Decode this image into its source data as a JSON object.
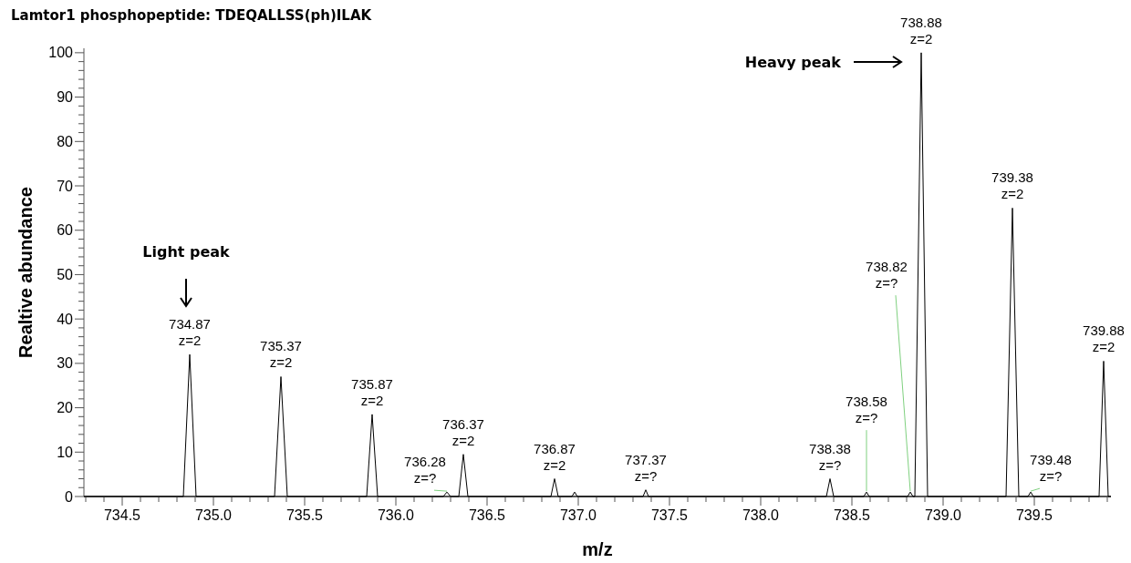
{
  "chart_data": {
    "type": "line",
    "title": "Lamtor1 phosphopeptide:  TDEQALLSS(ph)ILAK",
    "xlabel": "m/z",
    "ylabel": "Realtive abundance",
    "xlim": [
      734.29,
      739.92
    ],
    "xticks": [
      {
        "value": 734.3,
        "label": null
      },
      {
        "value": 734.4,
        "label": null
      },
      {
        "value": 734.5,
        "label": "734.5"
      },
      {
        "value": 734.6,
        "label": null
      },
      {
        "value": 734.7,
        "label": null
      },
      {
        "value": 734.8,
        "label": null
      },
      {
        "value": 734.9,
        "label": null
      },
      {
        "value": 735.0,
        "label": "735.0"
      },
      {
        "value": 735.1,
        "label": null
      },
      {
        "value": 735.2,
        "label": null
      },
      {
        "value": 735.3,
        "label": null
      },
      {
        "value": 735.4,
        "label": null
      },
      {
        "value": 735.5,
        "label": "735.5"
      },
      {
        "value": 735.6,
        "label": null
      },
      {
        "value": 735.7,
        "label": null
      },
      {
        "value": 735.8,
        "label": null
      },
      {
        "value": 735.9,
        "label": null
      },
      {
        "value": 736.0,
        "label": "736.0"
      },
      {
        "value": 736.1,
        "label": null
      },
      {
        "value": 736.2,
        "label": null
      },
      {
        "value": 736.3,
        "label": null
      },
      {
        "value": 736.4,
        "label": null
      },
      {
        "value": 736.5,
        "label": "736.5"
      },
      {
        "value": 736.6,
        "label": null
      },
      {
        "value": 736.7,
        "label": null
      },
      {
        "value": 736.8,
        "label": null
      },
      {
        "value": 736.9,
        "label": null
      },
      {
        "value": 737.0,
        "label": "737.0"
      },
      {
        "value": 737.1,
        "label": null
      },
      {
        "value": 737.2,
        "label": null
      },
      {
        "value": 737.3,
        "label": null
      },
      {
        "value": 737.4,
        "label": null
      },
      {
        "value": 737.5,
        "label": "737.5"
      },
      {
        "value": 737.6,
        "label": null
      },
      {
        "value": 737.7,
        "label": null
      },
      {
        "value": 737.8,
        "label": null
      },
      {
        "value": 737.9,
        "label": null
      },
      {
        "value": 738.0,
        "label": "738.0"
      },
      {
        "value": 738.1,
        "label": null
      },
      {
        "value": 738.2,
        "label": null
      },
      {
        "value": 738.3,
        "label": null
      },
      {
        "value": 738.4,
        "label": null
      },
      {
        "value": 738.5,
        "label": "738.5"
      },
      {
        "value": 738.6,
        "label": null
      },
      {
        "value": 738.7,
        "label": null
      },
      {
        "value": 738.8,
        "label": null
      },
      {
        "value": 738.9,
        "label": null
      },
      {
        "value": 739.0,
        "label": "739.0"
      },
      {
        "value": 739.1,
        "label": null
      },
      {
        "value": 739.2,
        "label": null
      },
      {
        "value": 739.3,
        "label": null
      },
      {
        "value": 739.4,
        "label": null
      },
      {
        "value": 739.5,
        "label": "739.5"
      },
      {
        "value": 739.6,
        "label": null
      },
      {
        "value": 739.7,
        "label": null
      },
      {
        "value": 739.8,
        "label": null
      },
      {
        "value": 739.9,
        "label": null
      }
    ],
    "ylim": [
      0,
      101
    ],
    "yticks": [
      0,
      {
        "value": 2,
        "label": null
      },
      {
        "value": 4,
        "label": null
      },
      {
        "value": 6,
        "label": null
      },
      {
        "value": 8,
        "label": null
      },
      10,
      {
        "value": 12,
        "label": null
      },
      {
        "value": 14,
        "label": null
      },
      {
        "value": 16,
        "label": null
      },
      {
        "value": 18,
        "label": null
      },
      20,
      {
        "value": 22,
        "label": null
      },
      {
        "value": 24,
        "label": null
      },
      {
        "value": 26,
        "label": null
      },
      {
        "value": 28,
        "label": null
      },
      30,
      {
        "value": 32,
        "label": null
      },
      {
        "value": 34,
        "label": null
      },
      {
        "value": 36,
        "label": null
      },
      {
        "value": 38,
        "label": null
      },
      40,
      {
        "value": 42,
        "label": null
      },
      {
        "value": 44,
        "label": null
      },
      {
        "value": 46,
        "label": null
      },
      {
        "value": 48,
        "label": null
      },
      50,
      {
        "value": 52,
        "label": null
      },
      {
        "value": 54,
        "label": null
      },
      {
        "value": 56,
        "label": null
      },
      {
        "value": 58,
        "label": null
      },
      60,
      {
        "value": 62,
        "label": null
      },
      {
        "value": 64,
        "label": null
      },
      {
        "value": 66,
        "label": null
      },
      {
        "value": 68,
        "label": null
      },
      70,
      {
        "value": 72,
        "label": null
      },
      {
        "value": 74,
        "label": null
      },
      {
        "value": 76,
        "label": null
      },
      {
        "value": 78,
        "label": null
      },
      80,
      {
        "value": 82,
        "label": null
      },
      {
        "value": 84,
        "label": null
      },
      {
        "value": 86,
        "label": null
      },
      {
        "value": 88,
        "label": null
      },
      90,
      {
        "value": 92,
        "label": null
      },
      {
        "value": 94,
        "label": null
      },
      {
        "value": 96,
        "label": null
      },
      {
        "value": 98,
        "label": null
      },
      100
    ],
    "grid": false,
    "marker": "none",
    "line_style": "solid",
    "series": [
      {
        "color": "#000000",
        "x": [
          734.29,
          734.835,
          734.87,
          734.905,
          735.335,
          735.37,
          735.405,
          735.84,
          735.87,
          735.9,
          736.26,
          736.28,
          736.3,
          736.345,
          736.37,
          736.395,
          736.85,
          736.87,
          736.89,
          736.965,
          736.98,
          736.995,
          737.355,
          737.37,
          737.385,
          738.36,
          738.38,
          738.4,
          738.565,
          738.58,
          738.595,
          738.805,
          738.82,
          738.835,
          738.845,
          738.88,
          738.915,
          739.345,
          739.38,
          739.415,
          739.465,
          739.48,
          739.495,
          739.855,
          739.88,
          739.905,
          739.92
        ],
        "values": [
          0,
          0,
          32,
          0,
          0,
          27,
          0,
          0,
          18.5,
          0,
          0,
          1,
          0,
          0,
          9.5,
          0,
          0,
          4,
          0,
          0,
          1,
          0,
          0,
          1.5,
          0,
          0,
          4,
          0,
          0,
          1,
          0,
          0,
          1,
          0,
          0,
          100,
          0,
          0,
          65,
          0,
          0,
          1,
          0,
          0,
          30.5,
          0,
          0
        ]
      }
    ],
    "annotations": [
      "Light peak",
      "Heavy peak",
      {
        "text": "734.87\nz=2",
        "x": 734.87,
        "y": 32
      },
      {
        "text": "735.37\nz=2",
        "x": 735.37,
        "y": 27
      },
      {
        "text": "735.87\nz=2",
        "x": 735.87,
        "y": 18.5
      },
      {
        "text": "736.28\nz=?",
        "x": 736.28,
        "y": 1
      },
      {
        "text": "736.37\nz=2",
        "x": 736.37,
        "y": 9.5
      },
      {
        "text": "736.87\nz=2",
        "x": 736.87,
        "y": 4
      },
      {
        "text": "737.37\nz=?",
        "x": 737.37,
        "y": 1.5
      },
      {
        "text": "738.38\nz=?",
        "x": 738.38,
        "y": 4
      },
      {
        "text": "738.58\nz=?",
        "x": 738.58,
        "y": 1
      },
      {
        "text": "738.82\nz=?",
        "x": 738.82,
        "y": 1
      },
      {
        "text": "738.88\nz=2",
        "x": 738.88,
        "y": 100
      },
      {
        "text": "739.38\nz=2",
        "x": 739.38,
        "y": 65
      },
      {
        "text": "739.48\nz=?",
        "x": 739.48,
        "y": 1
      },
      {
        "text": "739.88\nz=2",
        "x": 739.88,
        "y": 30.5
      }
    ]
  }
}
